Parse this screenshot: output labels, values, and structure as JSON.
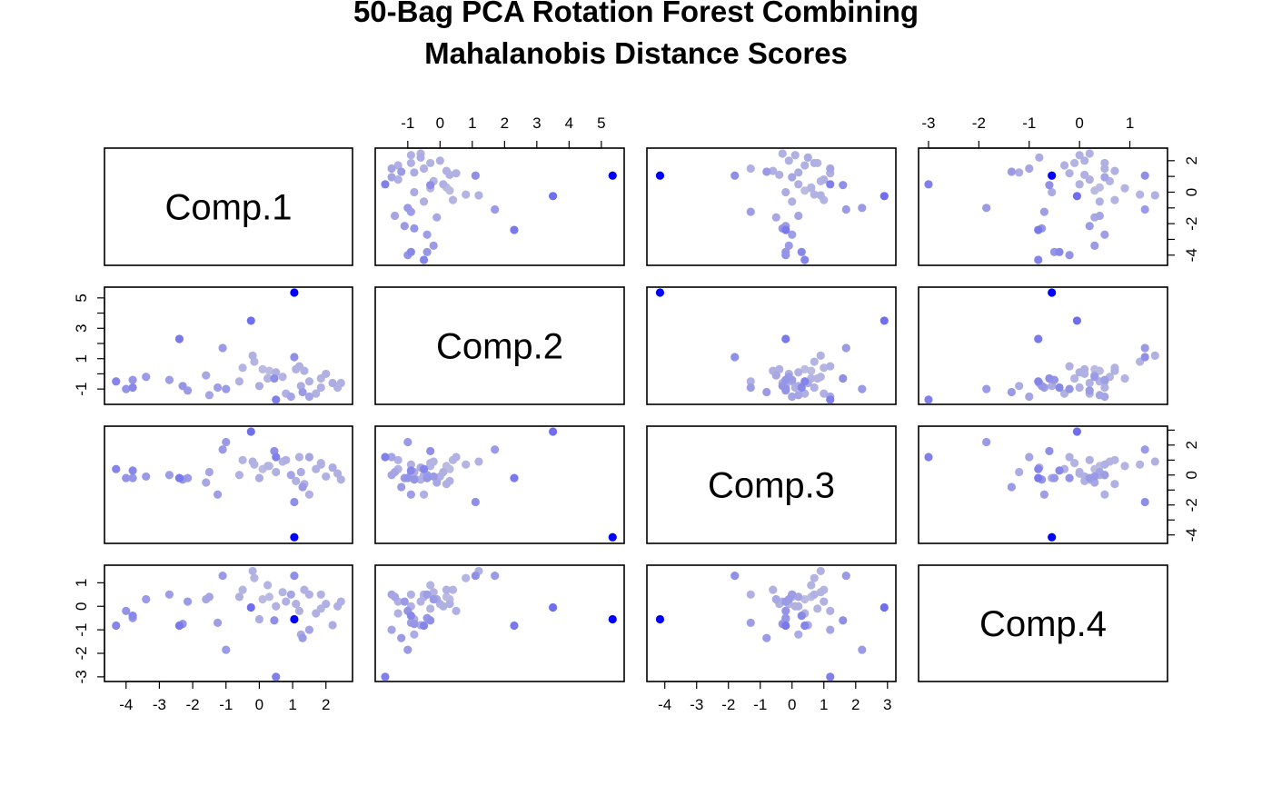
{
  "chart_data": {
    "type": "scatter",
    "title_lines": [
      "50-Bag PCA Rotation Forest Combining",
      "Mahalanobis Distance Scores"
    ],
    "variables": [
      "Comp.1",
      "Comp.2",
      "Comp.3",
      "Comp.4"
    ],
    "axis_ticks": {
      "Comp.1": [
        -4,
        -3,
        -2,
        -1,
        0,
        1,
        2
      ],
      "Comp.2": [
        -1,
        0,
        1,
        2,
        3,
        4,
        5
      ],
      "Comp.3": [
        -4,
        -3,
        -2,
        -1,
        0,
        1,
        2,
        3
      ],
      "Comp.4": [
        -3,
        -2,
        -1,
        0,
        1
      ]
    },
    "axis_ranges": {
      "Comp.1": [
        -4.35,
        2.5
      ],
      "Comp.2": [
        -1.7,
        5.4
      ],
      "Comp.3": [
        -4.25,
        2.95
      ],
      "Comp.4": [
        -3.0,
        1.55
      ]
    },
    "grid": false,
    "color_scale": {
      "low": "#dcdcdc",
      "high": "#0000ff",
      "meaning": "Mahalanobis distance score"
    },
    "points": [
      {
        "c1": 1.05,
        "c2": 5.35,
        "c3": -4.15,
        "c4": -0.55,
        "d": 1.0
      },
      {
        "c1": -0.25,
        "c2": 3.5,
        "c3": 2.9,
        "c4": -0.05,
        "d": 0.5
      },
      {
        "c1": -2.4,
        "c2": 2.3,
        "c3": -0.2,
        "c4": -0.82,
        "d": 0.45
      },
      {
        "c1": -4.3,
        "c2": -0.5,
        "c3": 0.4,
        "c4": -0.82,
        "d": 0.4
      },
      {
        "c1": -3.8,
        "c2": -0.9,
        "c3": 0.3,
        "c4": -0.4,
        "d": 0.38
      },
      {
        "c1": 0.5,
        "c2": -1.7,
        "c3": 1.2,
        "c4": -3.0,
        "d": 0.42
      },
      {
        "c1": 1.05,
        "c2": 1.1,
        "c3": -1.8,
        "c4": 1.3,
        "d": 0.35
      },
      {
        "c1": -1.0,
        "c2": -1.0,
        "c3": 2.2,
        "c4": -1.85,
        "d": 0.3
      },
      {
        "c1": -1.1,
        "c2": 1.7,
        "c3": 1.7,
        "c4": 1.3,
        "d": 0.3
      },
      {
        "c1": 0.45,
        "c2": -0.3,
        "c3": 1.6,
        "c4": -0.6,
        "d": 0.35
      },
      {
        "c1": 1.3,
        "c2": -1.2,
        "c3": -0.8,
        "c4": -1.35,
        "d": 0.3
      },
      {
        "c1": -4.0,
        "c2": -1.0,
        "c3": -0.2,
        "c4": -0.2,
        "d": 0.33
      },
      {
        "c1": -3.8,
        "c2": -0.4,
        "c3": -0.2,
        "c4": -0.5,
        "d": 0.32
      },
      {
        "c1": -3.4,
        "c2": -0.2,
        "c3": -0.1,
        "c4": 0.3,
        "d": 0.3
      },
      {
        "c1": -2.3,
        "c2": -0.8,
        "c3": -0.3,
        "c4": -0.75,
        "d": 0.32
      },
      {
        "c1": -1.25,
        "c2": -0.9,
        "c3": -1.3,
        "c4": -0.7,
        "d": 0.28
      },
      {
        "c1": -0.2,
        "c2": 1.2,
        "c3": 0.9,
        "c4": 1.5,
        "d": 0.2
      },
      {
        "c1": -0.15,
        "c2": 0.8,
        "c3": 0.7,
        "c4": 1.2,
        "d": 0.18
      },
      {
        "c1": 0.1,
        "c2": 0.3,
        "c3": 0.4,
        "c4": 0.3,
        "d": 0.15
      },
      {
        "c1": 0.3,
        "c2": 0.2,
        "c3": 0.6,
        "c4": 0.4,
        "d": 0.15
      },
      {
        "c1": 0.5,
        "c2": 0.1,
        "c3": 0.2,
        "c4": 0.0,
        "d": 0.2
      },
      {
        "c1": 0.7,
        "c2": -0.2,
        "c3": 0.9,
        "c4": 0.6,
        "d": 0.18
      },
      {
        "c1": 0.95,
        "c2": -1.5,
        "c3": 0.0,
        "c4": 0.5,
        "d": 0.25
      },
      {
        "c1": 1.2,
        "c2": 0.5,
        "c3": 1.2,
        "c4": -0.2,
        "d": 0.2
      },
      {
        "c1": 1.35,
        "c2": 0.2,
        "c3": -0.6,
        "c4": 0.7,
        "d": 0.2
      },
      {
        "c1": 1.5,
        "c2": -0.5,
        "c3": -1.3,
        "c4": 0.5,
        "d": 0.2
      },
      {
        "c1": 1.7,
        "c2": -1.3,
        "c3": 0.4,
        "c4": -0.3,
        "d": 0.2
      },
      {
        "c1": 1.85,
        "c2": -0.3,
        "c3": 0.8,
        "c4": -0.1,
        "d": 0.18
      },
      {
        "c1": 2.0,
        "c2": 0.0,
        "c3": -0.1,
        "c4": 0.1,
        "d": 0.2
      },
      {
        "c1": 2.2,
        "c2": -0.6,
        "c3": 0.5,
        "c4": -0.8,
        "d": 0.22
      },
      {
        "c1": 2.35,
        "c2": -0.9,
        "c3": 0.1,
        "c4": 0.0,
        "d": 0.2
      },
      {
        "c1": 2.45,
        "c2": -0.6,
        "c3": -0.3,
        "c4": 0.2,
        "d": 0.2
      },
      {
        "c1": 1.5,
        "c2": -1.5,
        "c3": 1.2,
        "c4": -1.0,
        "d": 0.25
      },
      {
        "c1": -1.5,
        "c2": -1.4,
        "c3": 0.2,
        "c4": 0.4,
        "d": 0.25
      },
      {
        "c1": -0.6,
        "c2": -0.5,
        "c3": 0.0,
        "c4": 0.4,
        "d": 0.2
      },
      {
        "c1": 0.0,
        "c2": -0.8,
        "c3": -0.2,
        "c4": -0.55,
        "d": 0.22
      },
      {
        "c1": 0.25,
        "c2": -0.3,
        "c3": 0.6,
        "c4": 0.9,
        "d": 0.18
      },
      {
        "c1": -2.7,
        "c2": -0.4,
        "c3": 0.0,
        "c4": 0.5,
        "d": 0.28
      },
      {
        "c1": -2.15,
        "c2": -1.1,
        "c3": -0.2,
        "c4": 0.2,
        "d": 0.3
      },
      {
        "c1": -1.6,
        "c2": -0.1,
        "c3": -0.5,
        "c4": 0.3,
        "d": 0.24
      },
      {
        "c1": 1.1,
        "c2": 0.3,
        "c3": -0.4,
        "c4": 0.1,
        "d": 0.2
      },
      {
        "c1": 1.85,
        "c2": -0.9,
        "c3": 0.7,
        "c4": 0.5,
        "d": 0.2
      },
      {
        "c1": -0.5,
        "c2": 0.4,
        "c3": 1.0,
        "c4": 0.7,
        "d": 0.18
      },
      {
        "c1": 0.8,
        "c2": -1.3,
        "c3": 1.0,
        "c4": 0.2,
        "d": 0.2
      },
      {
        "c1": 1.25,
        "c2": -0.8,
        "c3": 0.2,
        "c4": -1.2,
        "d": 0.22
      }
    ]
  }
}
